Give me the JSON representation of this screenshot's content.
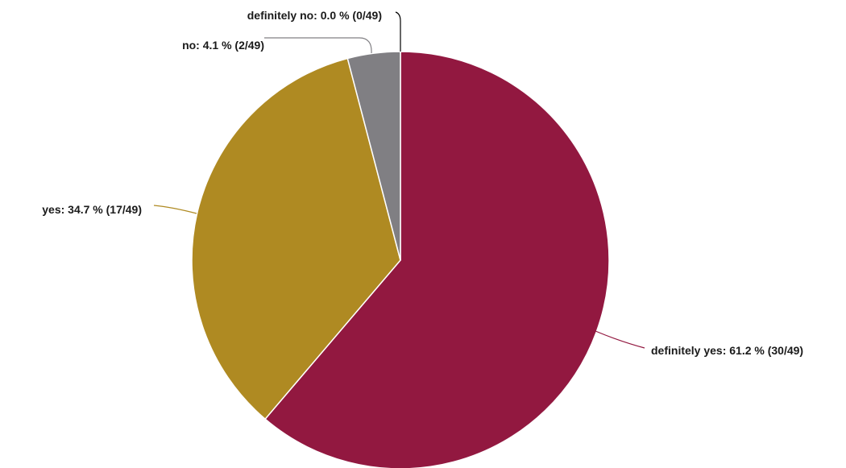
{
  "chart_data": {
    "type": "pie",
    "total": 49,
    "start_angle_deg": 0,
    "direction": "clockwise",
    "slices": [
      {
        "key": "definitely_yes",
        "label": "definitely yes: 61.2 % (30/49)",
        "count": 30,
        "percent": 61.2,
        "color": "#921840"
      },
      {
        "key": "yes",
        "label": "yes: 34.7 % (17/49)",
        "count": 17,
        "percent": 34.7,
        "color": "#af8a22"
      },
      {
        "key": "no",
        "label": "no: 4.1 % (2/49)",
        "count": 2,
        "percent": 4.1,
        "color": "#807f83"
      },
      {
        "key": "definitely_no",
        "label": "definitely no: 0.0 % (0/49)",
        "count": 0,
        "percent": 0.0,
        "color": "#000000"
      }
    ]
  }
}
